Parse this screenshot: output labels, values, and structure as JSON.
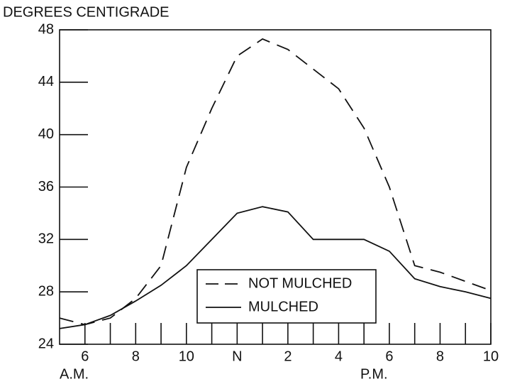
{
  "chart_data": {
    "type": "line",
    "title": "DEGREES CENTIGRADE",
    "annotations": [
      "A.M.",
      "P.M."
    ],
    "x": [
      5,
      6,
      7,
      8,
      9,
      10,
      11,
      12,
      13,
      14,
      15,
      16,
      17,
      18,
      19,
      20,
      21,
      22
    ],
    "series": [
      {
        "name": "NOT MULCHED",
        "color": "#111111",
        "dash": "dashed",
        "values": [
          26.0,
          25.5,
          26.0,
          27.5,
          30.0,
          37.5,
          42.0,
          46.0,
          47.3,
          46.5,
          45.0,
          43.5,
          40.5,
          36.0,
          30.0,
          29.5,
          28.8,
          28.1
        ]
      },
      {
        "name": "MULCHED",
        "color": "#111111",
        "dash": "solid",
        "values": [
          25.2,
          25.5,
          26.2,
          27.3,
          28.5,
          30.0,
          32.0,
          34.0,
          34.5,
          34.1,
          32.0,
          32.0,
          32.0,
          31.1,
          29.0,
          28.4,
          28.0,
          27.5
        ]
      }
    ],
    "xlim": [
      5,
      22
    ],
    "xticks": [
      6,
      8,
      10,
      {
        "value": 12,
        "label": "N"
      },
      {
        "value": 14,
        "label": "2"
      },
      {
        "value": 16,
        "label": "4"
      },
      {
        "value": 18,
        "label": "6"
      },
      {
        "value": 20,
        "label": "8"
      },
      {
        "value": 22,
        "label": "10"
      }
    ],
    "xminor_ticks": [
      7,
      9,
      11,
      13,
      15,
      17,
      19,
      21
    ],
    "ylim": [
      24,
      48
    ],
    "yticks": [
      24,
      28,
      32,
      36,
      40,
      44,
      48
    ],
    "grid": false,
    "legend": "bottom-center"
  }
}
